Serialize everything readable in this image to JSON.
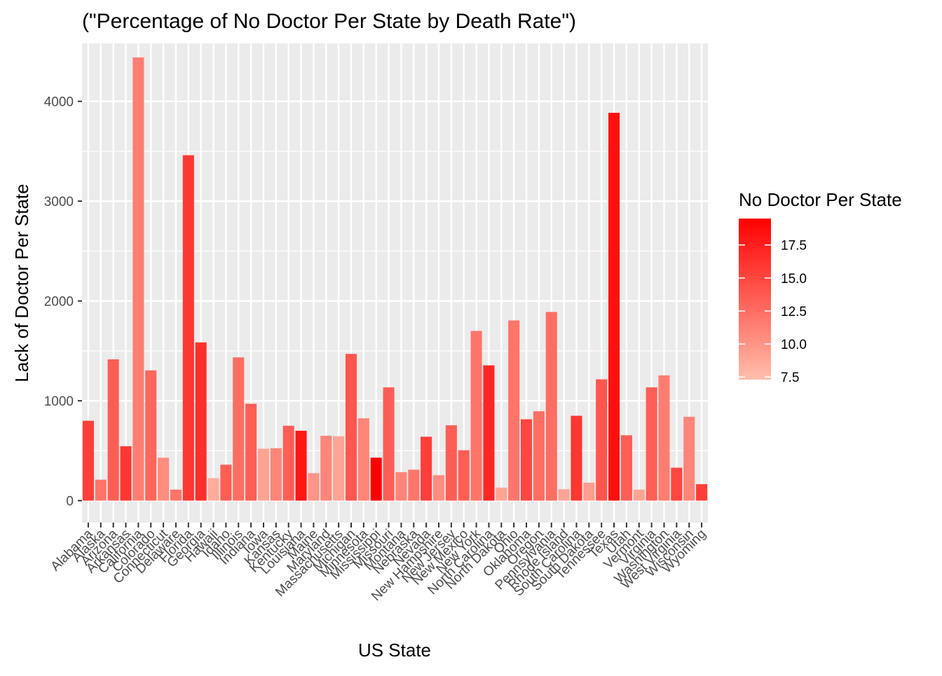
{
  "chart_data": {
    "type": "bar",
    "title": "(\"Percentage of No Doctor Per State by Death Rate\")",
    "xlabel": "US State",
    "ylabel": "Lack of Doctor Per State",
    "ylim": [
      -220,
      4580
    ],
    "y_ticks": [
      0,
      1000,
      2000,
      3000,
      4000
    ],
    "grid": true,
    "legend": {
      "title": "No Doctor Per State",
      "placement": "right",
      "range": [
        7.3,
        19.5
      ],
      "ticks": [
        7.5,
        10.0,
        12.5,
        15.0,
        17.5
      ],
      "tick_labels": [
        "7.5",
        "10.0",
        "12.5",
        "15.0",
        "17.5"
      ],
      "color_low": "#ffbfad",
      "color_high": "#ff0000"
    },
    "categories": [
      "Alabama",
      "Alaska",
      "Arizona",
      "Arkansas",
      "California",
      "Colorado",
      "Connecticut",
      "Delaware",
      "Florida",
      "Georgia",
      "Hawaii",
      "Idaho",
      "Illinois",
      "Indiana",
      "Iowa",
      "Kansas",
      "Kentucky",
      "Louisiana",
      "Maine",
      "Maryland",
      "Massachusetts",
      "Michigan",
      "Minnesota",
      "Mississippi",
      "Missouri",
      "Montana",
      "Nebraska",
      "Nevada",
      "New Hampshire",
      "New Jersey",
      "New Mexico",
      "New York",
      "North Carolina",
      "North Dakota",
      "Ohio",
      "Oklahoma",
      "Oregon",
      "Pennsylvania",
      "Rhode Island",
      "South Carolina",
      "South Dakota",
      "Tennessee",
      "Texas",
      "Utah",
      "Vermont",
      "Virginia",
      "Washington",
      "West Virginia",
      "Wisconsin",
      "Wyoming"
    ],
    "values": [
      800,
      210,
      1415,
      545,
      4440,
      1305,
      430,
      110,
      3460,
      1585,
      225,
      360,
      1435,
      970,
      520,
      525,
      750,
      700,
      275,
      650,
      645,
      1470,
      825,
      430,
      1135,
      285,
      310,
      640,
      255,
      755,
      505,
      1700,
      1355,
      130,
      1805,
      815,
      895,
      1890,
      115,
      850,
      180,
      1215,
      3885,
      655,
      110,
      1135,
      1255,
      330,
      840,
      165
    ],
    "fill_values": [
      15.5,
      12.0,
      13.5,
      16.0,
      11.5,
      13.0,
      10.5,
      12.0,
      16.0,
      16.5,
      8.5,
      13.5,
      12.5,
      13.5,
      9.0,
      11.0,
      13.5,
      18.0,
      10.0,
      11.0,
      9.0,
      14.0,
      11.0,
      19.5,
      13.5,
      11.0,
      12.0,
      15.5,
      10.5,
      13.5,
      13.5,
      12.0,
      17.0,
      9.0,
      12.0,
      15.0,
      12.5,
      12.5,
      9.0,
      16.0,
      9.5,
      14.0,
      18.5,
      13.5,
      9.0,
      13.5,
      11.5,
      15.0,
      11.0,
      15.5
    ]
  }
}
